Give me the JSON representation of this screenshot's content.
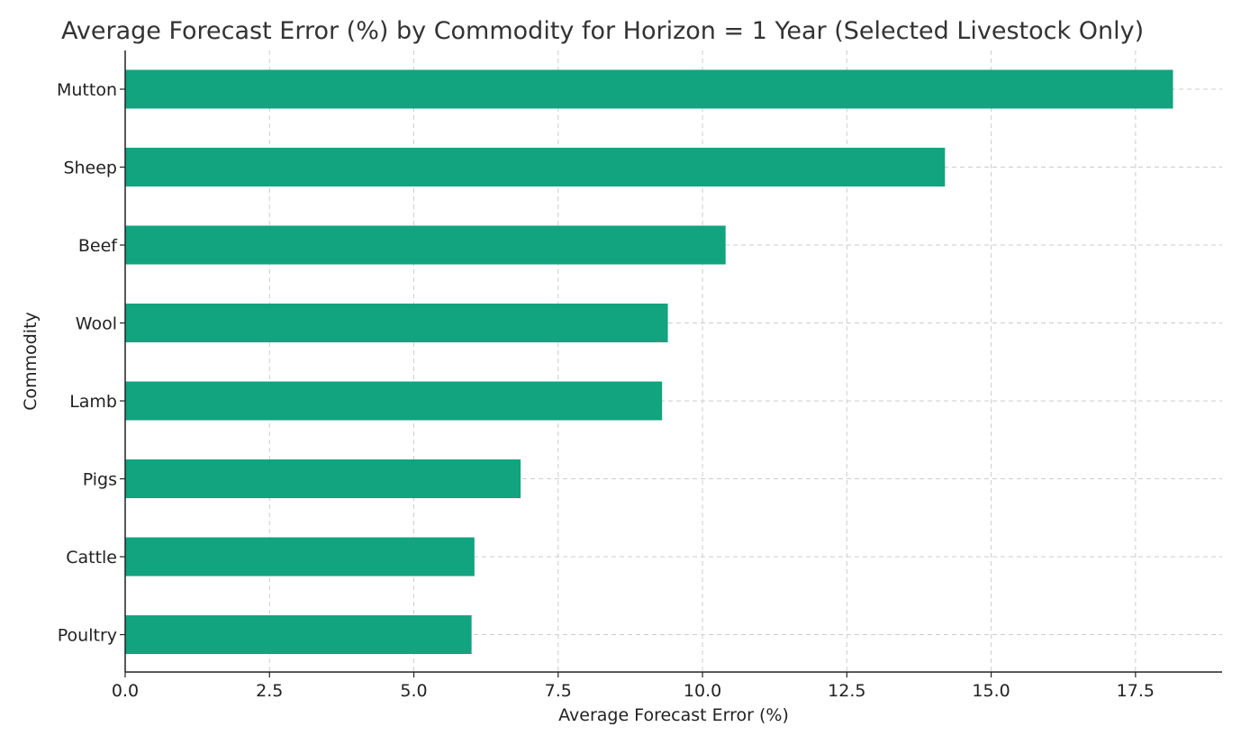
{
  "chart_data": {
    "type": "bar",
    "orientation": "horizontal",
    "title": "Average Forecast Error (%) by Commodity for Horizon = 1 Year (Selected Livestock Only)",
    "xlabel": "Average Forecast Error (%)",
    "ylabel": "Commodity",
    "categories": [
      "Mutton",
      "Sheep",
      "Beef",
      "Wool",
      "Lamb",
      "Pigs",
      "Cattle",
      "Poultry"
    ],
    "values": [
      18.15,
      14.2,
      10.4,
      9.4,
      9.3,
      6.85,
      6.05,
      6.0
    ],
    "xlim": [
      0,
      19.0
    ],
    "xticks": [
      0.0,
      2.5,
      5.0,
      7.5,
      10.0,
      12.5,
      15.0,
      17.5
    ],
    "xtick_labels": [
      "0.0",
      "2.5",
      "5.0",
      "7.5",
      "10.0",
      "12.5",
      "15.0",
      "17.5"
    ],
    "grid": true,
    "bar_color": "#12a37f",
    "grid_color": "#cccccc"
  }
}
